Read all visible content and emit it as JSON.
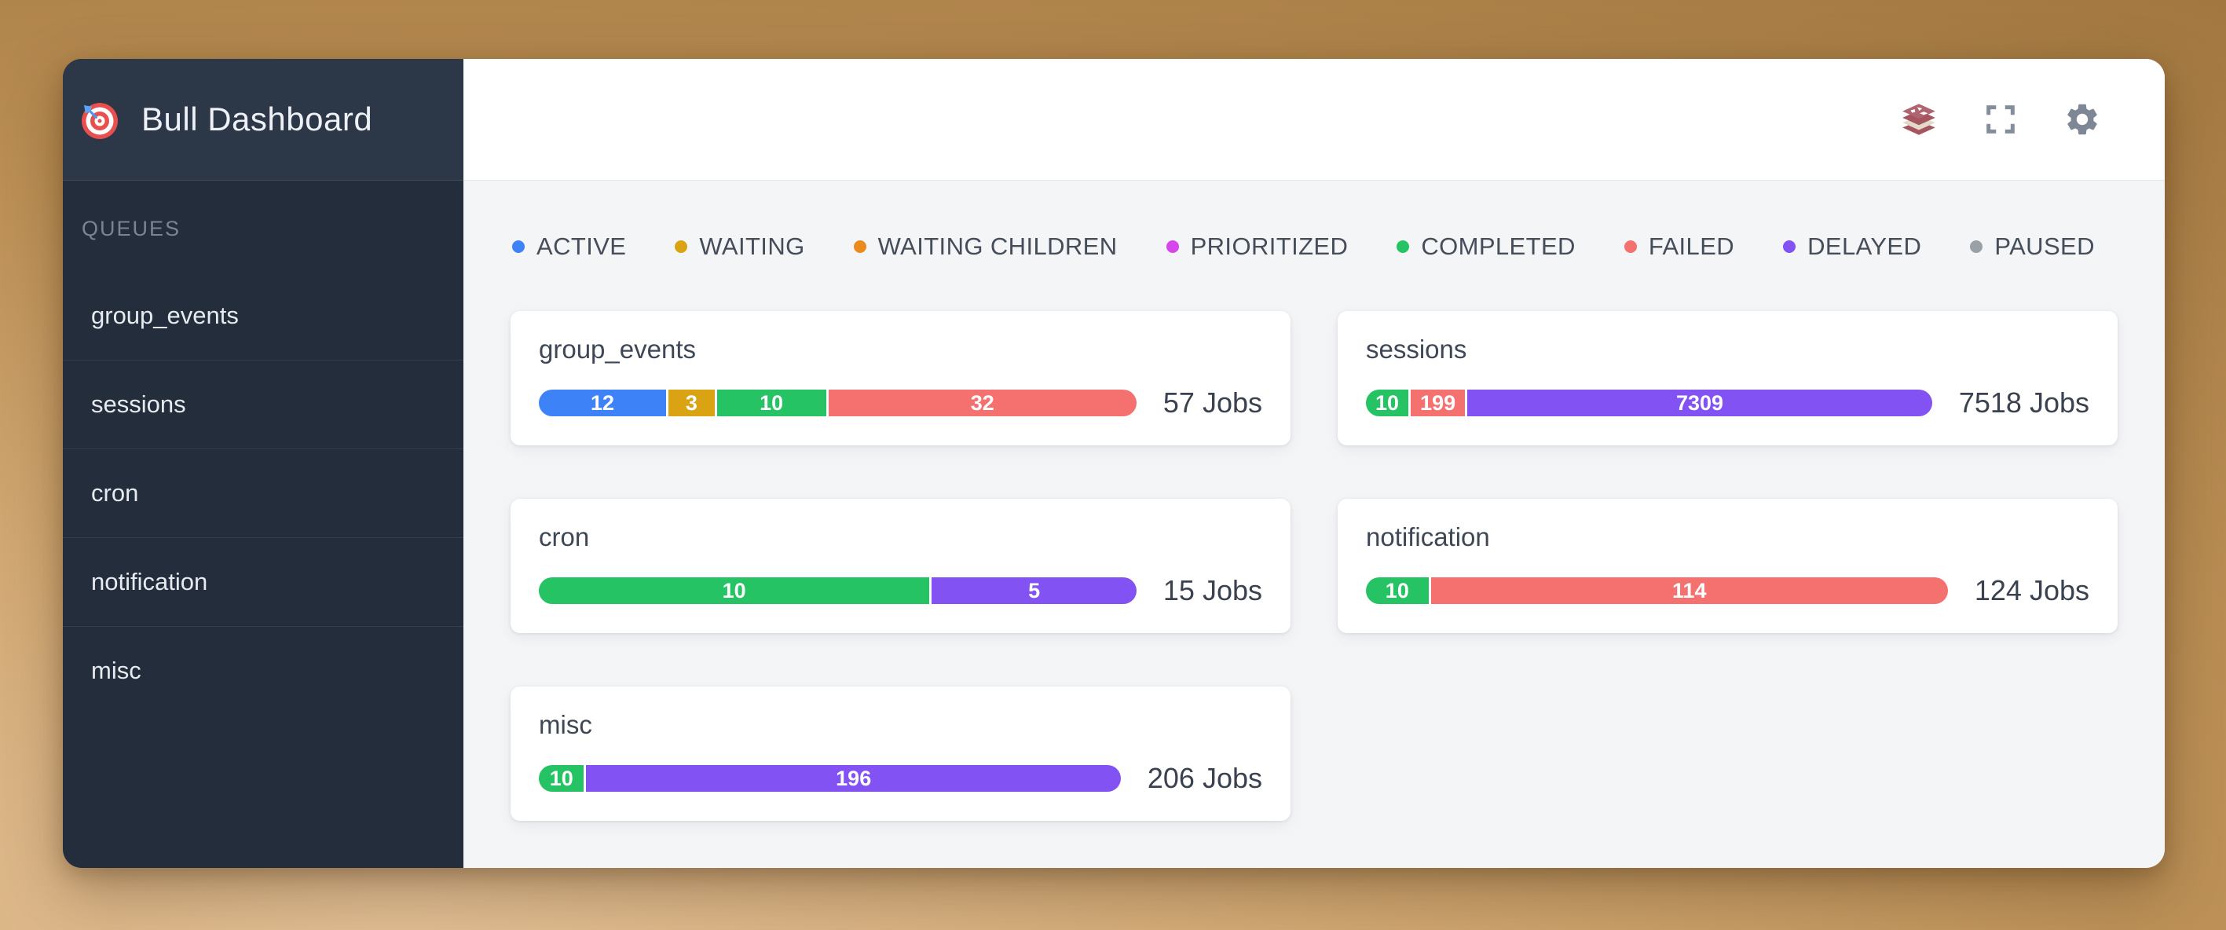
{
  "app": {
    "title": "Bull Dashboard"
  },
  "sidebar": {
    "section_label": "QUEUES",
    "items": [
      "group_events",
      "sessions",
      "cron",
      "notification",
      "misc"
    ]
  },
  "header": {
    "icons": [
      "redis-icon",
      "fullscreen-icon",
      "settings-icon"
    ]
  },
  "status_colors": {
    "active": "#3d82f7",
    "waiting": "#d9a313",
    "waiting_children": "#ea8a1f",
    "prioritized": "#d646ea",
    "completed": "#25c363",
    "failed": "#f57170",
    "delayed": "#8252f2",
    "paused": "#9aa0a8"
  },
  "legend": [
    {
      "label": "ACTIVE",
      "status": "active"
    },
    {
      "label": "WAITING",
      "status": "waiting"
    },
    {
      "label": "WAITING CHILDREN",
      "status": "waiting_children"
    },
    {
      "label": "PRIORITIZED",
      "status": "prioritized"
    },
    {
      "label": "COMPLETED",
      "status": "completed"
    },
    {
      "label": "FAILED",
      "status": "failed"
    },
    {
      "label": "DELAYED",
      "status": "delayed"
    },
    {
      "label": "PAUSED",
      "status": "paused"
    }
  ],
  "queues": [
    {
      "name": "group_events",
      "total_label": "57 Jobs",
      "segments": [
        {
          "status": "active",
          "value": 12
        },
        {
          "status": "waiting",
          "value": 3
        },
        {
          "status": "completed",
          "value": 10
        },
        {
          "status": "failed",
          "value": 32
        }
      ]
    },
    {
      "name": "sessions",
      "total_label": "7518 Jobs",
      "segments": [
        {
          "status": "completed",
          "value": 10
        },
        {
          "status": "failed",
          "value": 199
        },
        {
          "status": "delayed",
          "value": 7309
        }
      ]
    },
    {
      "name": "cron",
      "total_label": "15 Jobs",
      "segments": [
        {
          "status": "completed",
          "value": 10
        },
        {
          "status": "delayed",
          "value": 5
        }
      ]
    },
    {
      "name": "notification",
      "total_label": "124 Jobs",
      "segments": [
        {
          "status": "completed",
          "value": 10
        },
        {
          "status": "failed",
          "value": 114
        }
      ]
    },
    {
      "name": "misc",
      "total_label": "206 Jobs",
      "segments": [
        {
          "status": "completed",
          "value": 10
        },
        {
          "status": "delayed",
          "value": 196
        }
      ]
    }
  ]
}
